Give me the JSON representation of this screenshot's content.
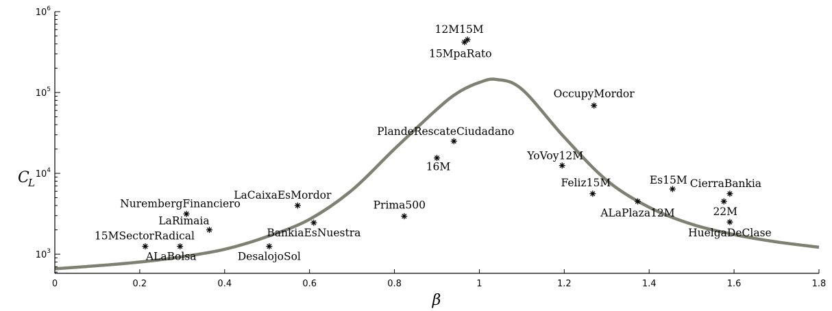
{
  "chart_data": {
    "type": "scatter",
    "xlabel": "β",
    "ylabel_main": "C",
    "ylabel_sub": "L",
    "xlim": [
      0,
      1.8
    ],
    "ylim": [
      580,
      1000000
    ],
    "yscale": "log",
    "grid": false,
    "x_ticks": [
      "0",
      "0.2",
      "0.4",
      "0.6",
      "0.8",
      "1",
      "1.2",
      "1.4",
      "1.6",
      "1.8"
    ],
    "y_ticks": [
      {
        "base": "10",
        "exp": "3"
      },
      {
        "base": "10",
        "exp": "4"
      },
      {
        "base": "10",
        "exp": "5"
      },
      {
        "base": "10",
        "exp": "6"
      }
    ],
    "curve": {
      "color": "#7f7f72",
      "x": [
        0,
        0.1,
        0.2,
        0.3,
        0.4,
        0.5,
        0.6,
        0.7,
        0.8,
        0.9,
        0.95,
        1.0,
        1.04,
        1.1,
        1.2,
        1.3,
        1.4,
        1.5,
        1.6,
        1.7,
        1.8
      ],
      "y": [
        660,
        720,
        800,
        930,
        1150,
        1650,
        2700,
        6200,
        20000,
        62000,
        100000,
        133000,
        145000,
        110000,
        28000,
        8200,
        3800,
        2350,
        1750,
        1420,
        1220
      ]
    },
    "points": [
      {
        "label": "12M15M",
        "x": 0.972,
        "y": 450000
      },
      {
        "label": "15MpaRato",
        "x": 0.965,
        "y": 420000
      },
      {
        "label": "OccupyMordor",
        "x": 1.27,
        "y": 69000
      },
      {
        "label": "PlandeRescateCiudadano",
        "x": 0.94,
        "y": 25000
      },
      {
        "label": "16M",
        "x": 0.9,
        "y": 15500
      },
      {
        "label": "YoVoy12M",
        "x": 1.195,
        "y": 12500
      },
      {
        "label": "Es15M",
        "x": 1.455,
        "y": 6400
      },
      {
        "label": "CierraBankia",
        "x": 1.59,
        "y": 5600
      },
      {
        "label": "Feliz15M",
        "x": 1.267,
        "y": 5600
      },
      {
        "label": "22M",
        "x": 1.576,
        "y": 4500
      },
      {
        "label": "ALaPlaza12M",
        "x": 1.373,
        "y": 4500
      },
      {
        "label": "HuelgaDeClase",
        "x": 1.59,
        "y": 2500
      },
      {
        "label": "LaCaixaEsMordor",
        "x": 0.572,
        "y": 4000
      },
      {
        "label": "NurembergFinanciero",
        "x": 0.31,
        "y": 3150
      },
      {
        "label": "Prima500",
        "x": 0.823,
        "y": 2950
      },
      {
        "label": "LaRimaia",
        "x": 0.364,
        "y": 2000
      },
      {
        "label": "BankiaEsNuestra",
        "x": 0.61,
        "y": 2450
      },
      {
        "label": "15MSectorRadical",
        "x": 0.213,
        "y": 1250
      },
      {
        "label": "ALaBolsa",
        "x": 0.295,
        "y": 1250
      },
      {
        "label": "DesalojoSol",
        "x": 0.505,
        "y": 1250
      }
    ]
  }
}
